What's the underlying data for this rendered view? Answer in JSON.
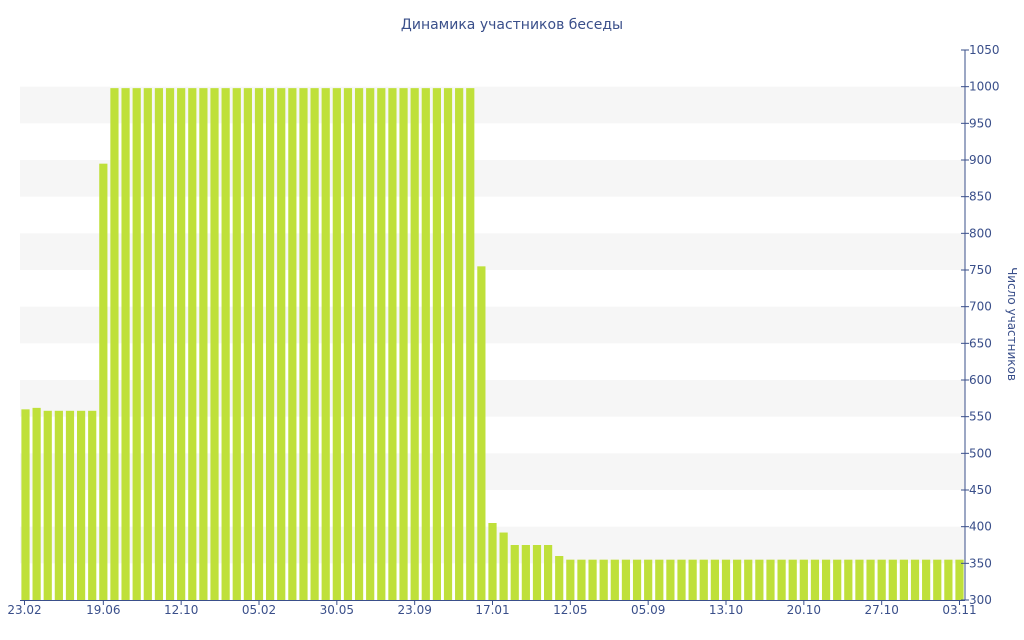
{
  "chart_data": {
    "type": "bar",
    "title": "Динамика участников беседы",
    "xlabel": "",
    "ylabel": "Число участников",
    "ylim": [
      300,
      1050
    ],
    "y_ticks": [
      300,
      350,
      400,
      450,
      500,
      550,
      600,
      650,
      700,
      750,
      800,
      850,
      900,
      950,
      1000,
      1050
    ],
    "x_ticks": [
      "23.02",
      "19.06",
      "12.10",
      "05.02",
      "30.05",
      "23.09",
      "17.01",
      "12.05",
      "05.09",
      "13.10",
      "20.10",
      "27.10",
      "03.11"
    ],
    "x_tick_bar_index": [
      0,
      7,
      14,
      21,
      28,
      35,
      42,
      49,
      56,
      63,
      70,
      77,
      84
    ],
    "bar_color": "#bfe03a",
    "grid": "alternating horizontal bands",
    "y_axis_position": "right",
    "values": [
      560,
      562,
      558,
      558,
      558,
      558,
      558,
      895,
      998,
      998,
      998,
      998,
      998,
      998,
      998,
      998,
      998,
      998,
      998,
      998,
      998,
      998,
      998,
      998,
      998,
      998,
      998,
      998,
      998,
      998,
      998,
      998,
      998,
      998,
      998,
      998,
      998,
      998,
      998,
      998,
      998,
      755,
      405,
      392,
      375,
      375,
      375,
      375,
      360,
      355,
      355,
      355,
      355,
      355,
      355,
      355,
      355,
      355,
      355,
      355,
      355,
      355,
      355,
      355,
      355,
      355,
      355,
      355,
      355,
      355,
      355,
      355,
      355,
      355,
      355,
      355,
      355,
      355,
      355,
      355,
      355,
      355,
      355,
      355,
      355
    ]
  }
}
